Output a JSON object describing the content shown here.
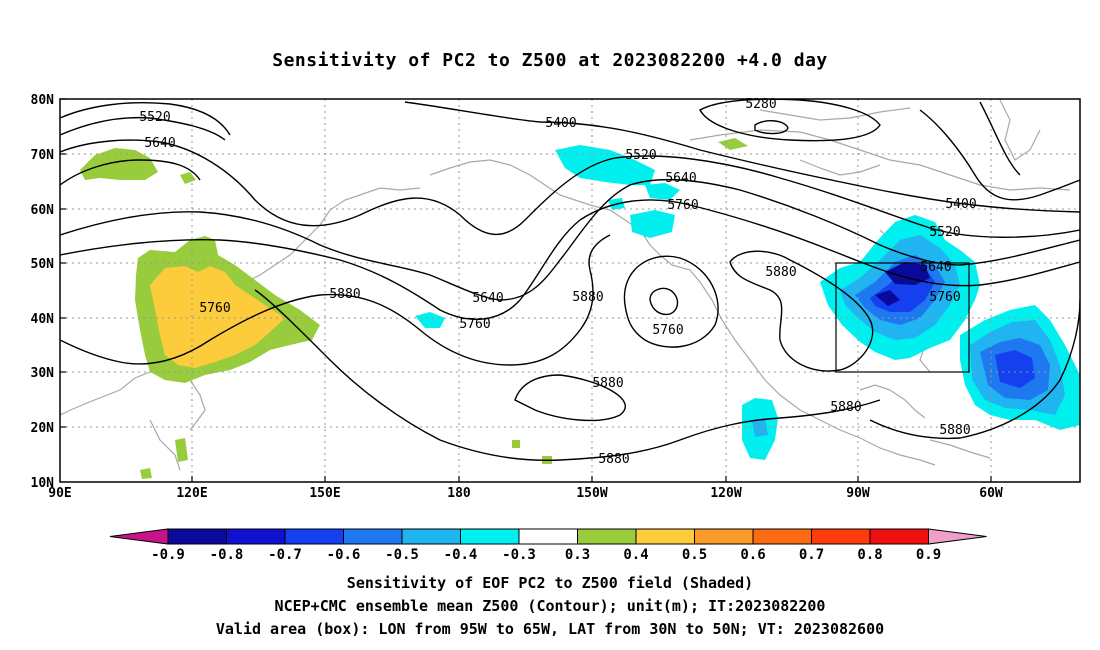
{
  "title": "Sensitivity of PC2 to Z500 at 2023082200 +4.0 day",
  "lat_labels": [
    "80N",
    "70N",
    "60N",
    "50N",
    "40N",
    "30N",
    "20N",
    "10N"
  ],
  "lon_labels": [
    "90E",
    "120E",
    "150E",
    "180",
    "150W",
    "120W",
    "90W",
    "60W"
  ],
  "contour_labels": [
    {
      "text": "5520",
      "k": "a"
    },
    {
      "text": "5640",
      "k": "b"
    },
    {
      "text": "5400",
      "k": "c"
    },
    {
      "text": "5280",
      "k": "d"
    },
    {
      "text": "5520",
      "k": "e"
    },
    {
      "text": "5640",
      "k": "f"
    },
    {
      "text": "5760",
      "k": "g"
    },
    {
      "text": "5400",
      "k": "h"
    },
    {
      "text": "5520",
      "k": "i"
    },
    {
      "text": "5640",
      "k": "j"
    },
    {
      "text": "5760",
      "k": "k"
    },
    {
      "text": "5880",
      "k": "l"
    },
    {
      "text": "5760",
      "k": "m"
    },
    {
      "text": "5880",
      "k": "n"
    },
    {
      "text": "5640",
      "k": "o"
    },
    {
      "text": "5760",
      "k": "p"
    },
    {
      "text": "5880",
      "k": "q"
    },
    {
      "text": "5760",
      "k": "r"
    },
    {
      "text": "5880",
      "k": "s"
    },
    {
      "text": "5880",
      "k": "t"
    },
    {
      "text": "5880",
      "k": "u"
    },
    {
      "text": "5880",
      "k": "v"
    }
  ],
  "colorbar": {
    "labels": [
      "-0.9",
      "-0.8",
      "-0.7",
      "-0.6",
      "-0.5",
      "-0.4",
      "-0.3",
      "0.3",
      "0.4",
      "0.5",
      "0.6",
      "0.7",
      "0.8",
      "0.9"
    ],
    "colors": [
      "#0a0a9a",
      "#1010d0",
      "#1440f0",
      "#1e78f0",
      "#20b4f0",
      "#00f0f0",
      "#ffffff",
      "#98cc3c",
      "#fccc3c",
      "#fc9c28",
      "#fc6a14",
      "#fc3c0a",
      "#f01010"
    ],
    "min_color": "#c8148c",
    "max_color": "#f0a0c8"
  },
  "footer": {
    "line1": "Sensitivity of EOF PC2 to Z500 field (Shaded)",
    "line2": "NCEP+CMC ensemble mean Z500 (Contour); unit(m); IT:2023082200",
    "line3": "Valid area (box): LON from 95W to 65W, LAT from 30N to 50N; VT: 2023082600"
  },
  "valid_box": {
    "lon_min": "95W",
    "lon_max": "65W",
    "lat_min": "30N",
    "lat_max": "50N"
  }
}
